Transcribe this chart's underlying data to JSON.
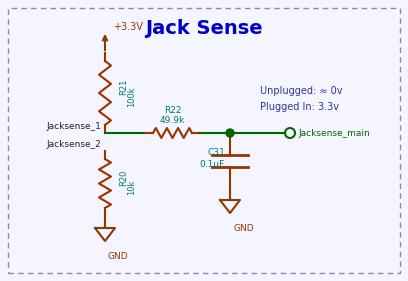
{
  "title": "Jack Sense",
  "title_color": "#0000CC",
  "title_fontsize": 14,
  "bg_color": "#F5F5FF",
  "border_color": "#8888BB",
  "wire_color": "#006600",
  "resistor_color": "#993300",
  "capacitor_color": "#993300",
  "label_color": "#007777",
  "net_label_color": "#006600",
  "node_color": "#006600",
  "gnd_color": "#8B3A00",
  "vcc_color": "#8B3A00",
  "note_color": "#333399",
  "annotations": {
    "title": "Jack Sense",
    "vcc": "+3.3V",
    "gnd1": "GND",
    "gnd2": "GND",
    "r21_label": "R21",
    "r21_val": "100k",
    "r22_label": "R22",
    "r22_val": "49.9k",
    "r20_label": "R20",
    "r20_val": "10k",
    "c31_label": "C31",
    "c31_val": "0.1uF",
    "jacksense1": "Jacksense_1",
    "jacksense2": "Jacksense_2",
    "jacksense_main": "Jacksense_main",
    "note": "Unplugged: ≈ 0v\nPlugged In: 3.3v"
  }
}
